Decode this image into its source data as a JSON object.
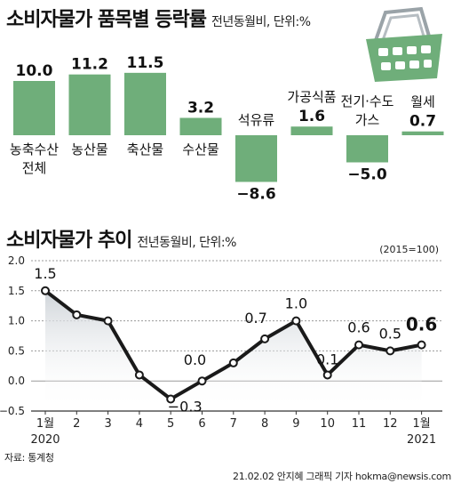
{
  "source": "자료: 통계청",
  "credit": "21.02.02 안지혜 그래픽 기자 hokma@newsis.com",
  "colors": {
    "bar": "#6fae7a",
    "basket": "#6fae7a",
    "line": "#1a1a1a",
    "fill_top": "#cfd4d9",
    "axis": "#333333"
  },
  "basket_icon": "shopping-basket-icon",
  "chart_data": [
    {
      "type": "bar",
      "title": "소비자물가 품목별 등락률",
      "subtitle": "전년동월비, 단위:%",
      "categories": [
        "농축수산 전체",
        "농산물",
        "축산물",
        "수산물",
        "석유류",
        "가공식품",
        "전기·수도 가스",
        "월세"
      ],
      "category_lines": [
        [
          "농축수산",
          "전체"
        ],
        [
          "농산물"
        ],
        [
          "축산물"
        ],
        [
          "수산물"
        ],
        [
          "석유류"
        ],
        [
          "가공식품"
        ],
        [
          "전기·수도",
          "가스"
        ],
        [
          "월세"
        ]
      ],
      "values": [
        10.0,
        11.2,
        11.5,
        3.2,
        -8.6,
        1.6,
        -5.0,
        0.7
      ],
      "value_labels": [
        "10.0",
        "11.2",
        "11.5",
        "3.2",
        "−8.6",
        "1.6",
        "−5.0",
        "0.7"
      ]
    },
    {
      "type": "line",
      "title": "소비자물가 추이",
      "subtitle": "전년동월비, 단위:%",
      "note": "(2015=100)",
      "x": [
        "1월",
        "2",
        "3",
        "4",
        "5",
        "6",
        "7",
        "8",
        "9",
        "10",
        "11",
        "12",
        "1월"
      ],
      "year_labels": [
        {
          "index": 0,
          "label": "2020"
        },
        {
          "index": 12,
          "label": "2021"
        }
      ],
      "values": [
        1.5,
        1.1,
        1.0,
        0.1,
        -0.3,
        0.0,
        0.3,
        0.7,
        1.0,
        0.1,
        0.6,
        0.5,
        0.6
      ],
      "value_labels": [
        {
          "index": 0,
          "label": "1.5"
        },
        {
          "index": 4,
          "label": "−0.3"
        },
        {
          "index": 5,
          "label": "0.0"
        },
        {
          "index": 7,
          "label": "0.7"
        },
        {
          "index": 8,
          "label": "1.0"
        },
        {
          "index": 9,
          "label": "0.1"
        },
        {
          "index": 10,
          "label": "0.6"
        },
        {
          "index": 11,
          "label": "0.5"
        },
        {
          "index": 12,
          "label": "0.6"
        }
      ],
      "yticks": [
        2.0,
        1.5,
        1.0,
        0.5,
        0.0,
        -0.5
      ],
      "ytick_labels": [
        "2.0",
        "1.5",
        "1.0",
        "0.5",
        "0.0",
        "−0.5"
      ],
      "ylim": [
        -0.5,
        2.0
      ],
      "grid": true
    }
  ]
}
